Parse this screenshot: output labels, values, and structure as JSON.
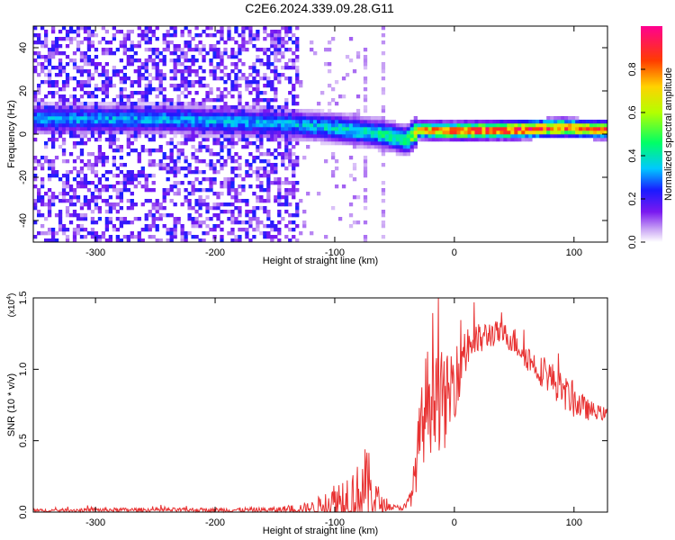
{
  "title": "C2E6.2024.339.09.28.G11",
  "chart_data": [
    {
      "type": "heatmap",
      "xlabel": "Height of straight line (km)",
      "ylabel": "Frequency (Hz)",
      "xlim": [
        -352,
        128
      ],
      "ylim": [
        -50,
        50
      ],
      "xticks": [
        -300,
        -200,
        -100,
        0,
        100
      ],
      "yticks": [
        -40,
        -20,
        0,
        20,
        40
      ],
      "colorbar": {
        "label": "Normalized spectral amplitude",
        "range": [
          0,
          1
        ],
        "ticks": [
          "0.0",
          "0.2",
          "0.4",
          "0.6",
          "0.8"
        ],
        "tick_values": [
          0.0,
          0.2,
          0.4,
          0.6,
          0.8
        ],
        "colormap": "rainbow (white-purple-blue-cyan-green-yellow-orange-red-magenta)"
      },
      "signal_band": {
        "x": [
          -240,
          -200,
          -150,
          -100,
          -60,
          -40,
          -30,
          0,
          50,
          90,
          128
        ],
        "center_hz": [
          7,
          6,
          5,
          3,
          0,
          -3,
          2,
          1.5,
          2,
          3,
          2
        ],
        "amplitude": [
          0.35,
          0.35,
          0.35,
          0.4,
          0.45,
          0.5,
          0.75,
          0.9,
          0.95,
          0.9,
          0.85
        ]
      },
      "noise_region": {
        "x_range": [
          -352,
          -130
        ],
        "amplitude_range": [
          0.05,
          0.25
        ]
      }
    },
    {
      "type": "line",
      "xlabel": "Height of straight line (km)",
      "ylabel": "SNR (10 * v/v)",
      "multiplier_label": "(x10",
      "multiplier_exp": "4",
      "xlim": [
        -352,
        128
      ],
      "ylim": [
        0,
        1.5
      ],
      "xticks": [
        -300,
        -200,
        -100,
        0,
        100
      ],
      "yticks": [
        "0.0",
        "0.5",
        "1.0",
        "1.5"
      ],
      "ytick_values": [
        0.0,
        0.5,
        1.0,
        1.5
      ],
      "color": "#e83232",
      "envelope": {
        "x": [
          -352,
          -300,
          -200,
          -150,
          -120,
          -110,
          -100,
          -90,
          -80,
          -75,
          -70,
          -65,
          -60,
          -55,
          -50,
          -45,
          -40,
          -35,
          -30,
          -25,
          -20,
          -17,
          -15,
          -10,
          -5,
          0,
          5,
          10,
          15,
          20,
          30,
          40,
          50,
          60,
          70,
          80,
          90,
          100,
          110,
          120,
          128
        ],
        "base": [
          0.01,
          0.015,
          0.015,
          0.015,
          0.03,
          0.05,
          0.07,
          0.1,
          0.12,
          0.18,
          0.15,
          0.08,
          0.05,
          0.04,
          0.03,
          0.03,
          0.04,
          0.15,
          0.45,
          0.7,
          0.85,
          1.0,
          0.9,
          0.75,
          0.8,
          0.95,
          1.1,
          1.15,
          1.2,
          1.2,
          1.25,
          1.25,
          1.2,
          1.1,
          1.0,
          0.95,
          0.85,
          0.78,
          0.72,
          0.7,
          0.68
        ],
        "noise": [
          0.01,
          0.015,
          0.015,
          0.02,
          0.04,
          0.08,
          0.15,
          0.2,
          0.22,
          0.28,
          0.25,
          0.15,
          0.05,
          0.03,
          0.02,
          0.02,
          0.03,
          0.1,
          0.25,
          0.35,
          0.45,
          0.5,
          0.45,
          0.35,
          0.3,
          0.3,
          0.28,
          0.2,
          0.15,
          0.12,
          0.1,
          0.08,
          0.1,
          0.1,
          0.1,
          0.12,
          0.12,
          0.12,
          0.08,
          0.05,
          0.05
        ]
      }
    }
  ]
}
